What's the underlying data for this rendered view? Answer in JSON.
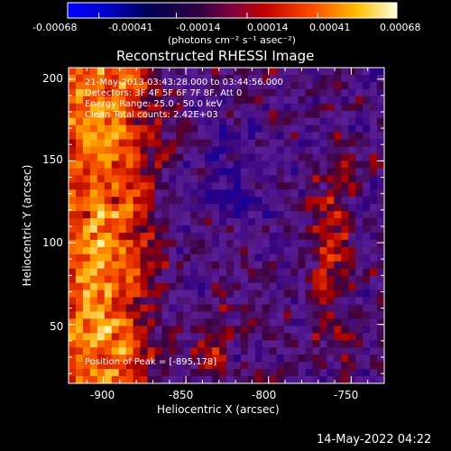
{
  "colorbar": {
    "tick_labels": [
      "-0.00068",
      "-0.00041",
      "-0.00014",
      "0.00014",
      "0.00041",
      "0.00068"
    ],
    "unit_label": "(photons cm⁻² s⁻¹ asec⁻²)",
    "range": [
      -0.00068,
      0.00068
    ]
  },
  "plot": {
    "title": "Reconstructed RHESSI Image",
    "x_axis_label": "Heliocentric X (arcsec)",
    "y_axis_label": "Heliocentric Y (arcsec)",
    "x_tick_labels": [
      "-900",
      "-850",
      "-800",
      "-750"
    ],
    "y_tick_labels": [
      "200",
      "150",
      "100",
      "50"
    ],
    "x_ticks": [
      -900,
      -850,
      -800,
      -750
    ],
    "y_ticks": [
      200,
      150,
      100,
      50
    ],
    "xlim": [
      -921,
      -730
    ],
    "ylim": [
      14,
      207
    ]
  },
  "annotations": {
    "time_range": "21-May-2013 03:43:28.000 to 03:44:56.000",
    "detectors": "Detectors: 3F 4F 5F 6F 7F 8F, Att 0",
    "energy_range": "Energy Range: 25.0 - 50.0 keV",
    "method": "Clean  Total counts: 2.42E+03",
    "peak_position": "Position of Peak = [-895,178]"
  },
  "footer": {
    "timestamp": "14-May-2022 04:22"
  }
}
